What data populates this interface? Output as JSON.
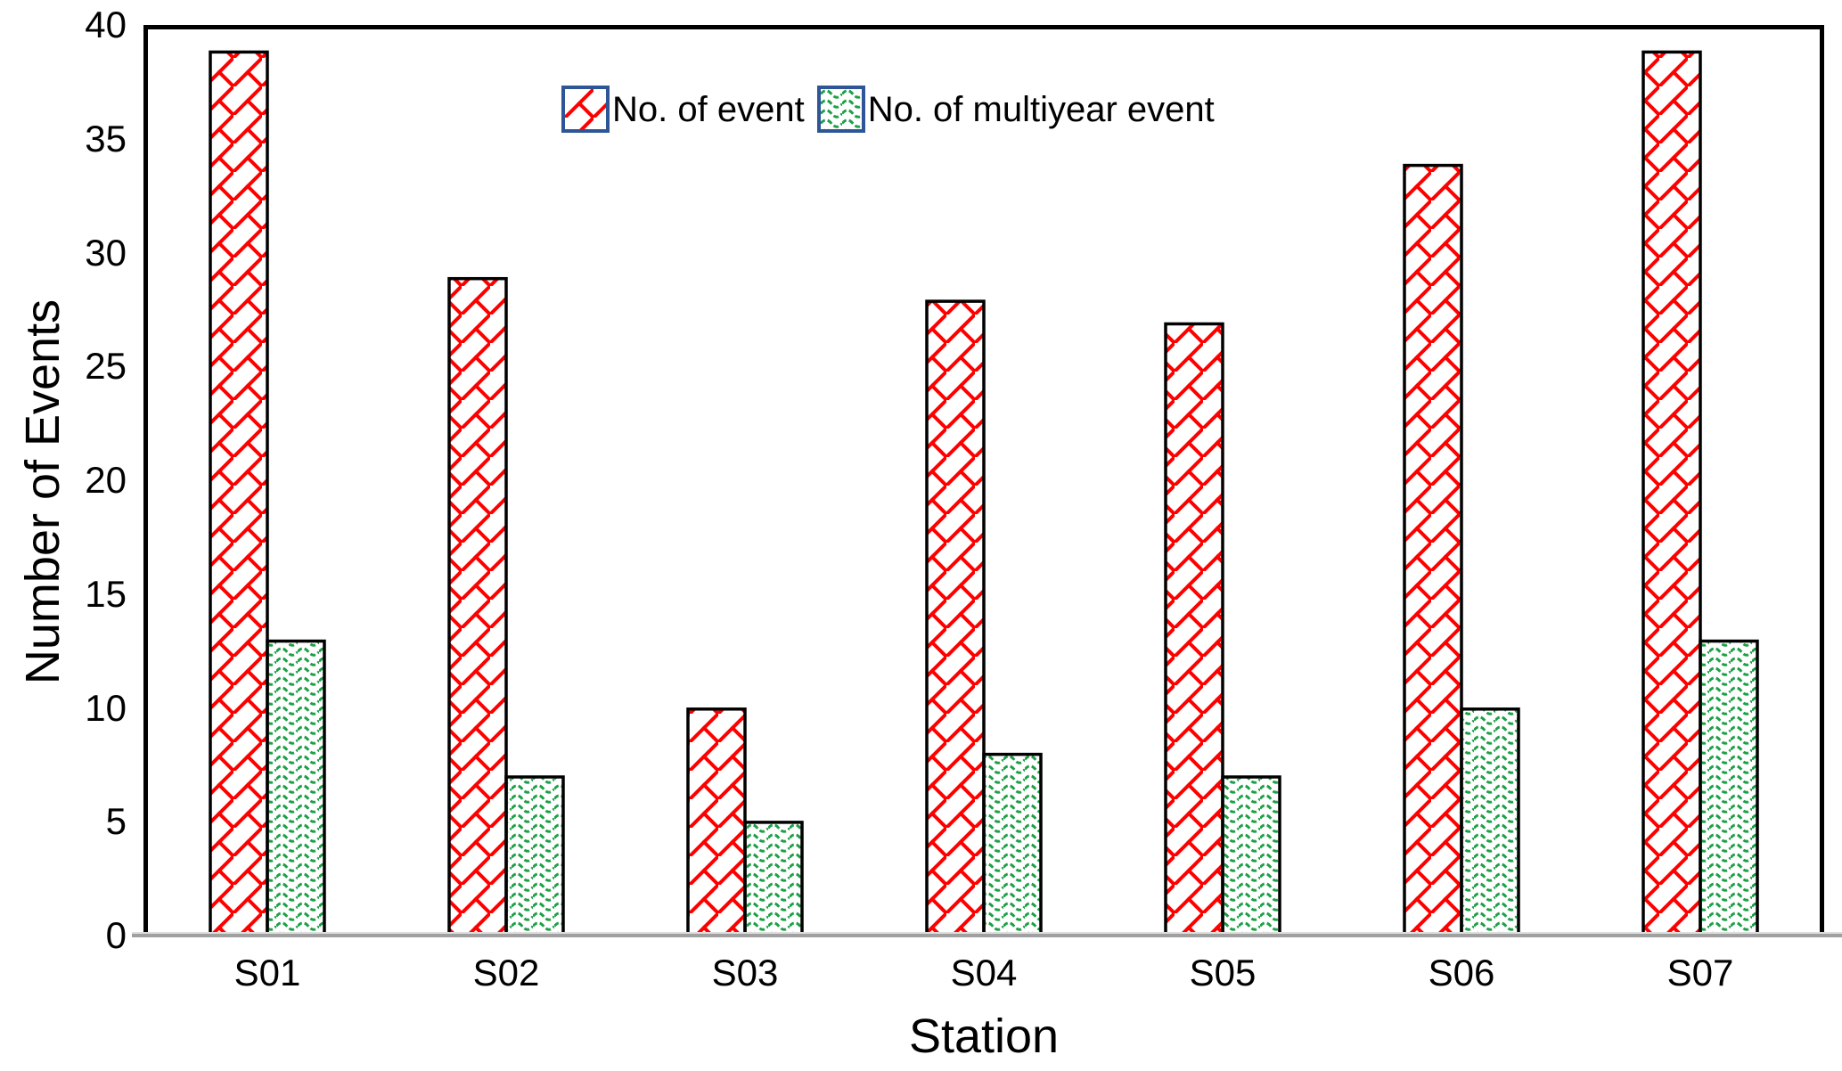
{
  "chart_data": {
    "type": "bar",
    "title": "",
    "categories": [
      "S01",
      "S02",
      "S03",
      "S04",
      "S05",
      "S06",
      "S07"
    ],
    "series": [
      {
        "name": "No. of event",
        "values": [
          39,
          29,
          10,
          28,
          27,
          34,
          39
        ],
        "pattern": "red-diagonal-brick",
        "color": "#FF0000"
      },
      {
        "name": "No. of multiyear event",
        "values": [
          13,
          7,
          5,
          8,
          7,
          10,
          13
        ],
        "pattern": "green-dashed-wave",
        "color": "#1EA048"
      }
    ],
    "xlabel": "Station",
    "ylabel": "Number of Events",
    "ylim": [
      0,
      40
    ],
    "yticks": [
      0,
      5,
      10,
      15,
      20,
      25,
      30,
      35,
      40
    ],
    "grid": false,
    "legend_position": "top-center-inside",
    "legend_swatch_border_color": "#2E5697",
    "bar_border_color": "#000000",
    "plot_border_color": "#000000",
    "baseline_color": "#A0A0A0"
  }
}
